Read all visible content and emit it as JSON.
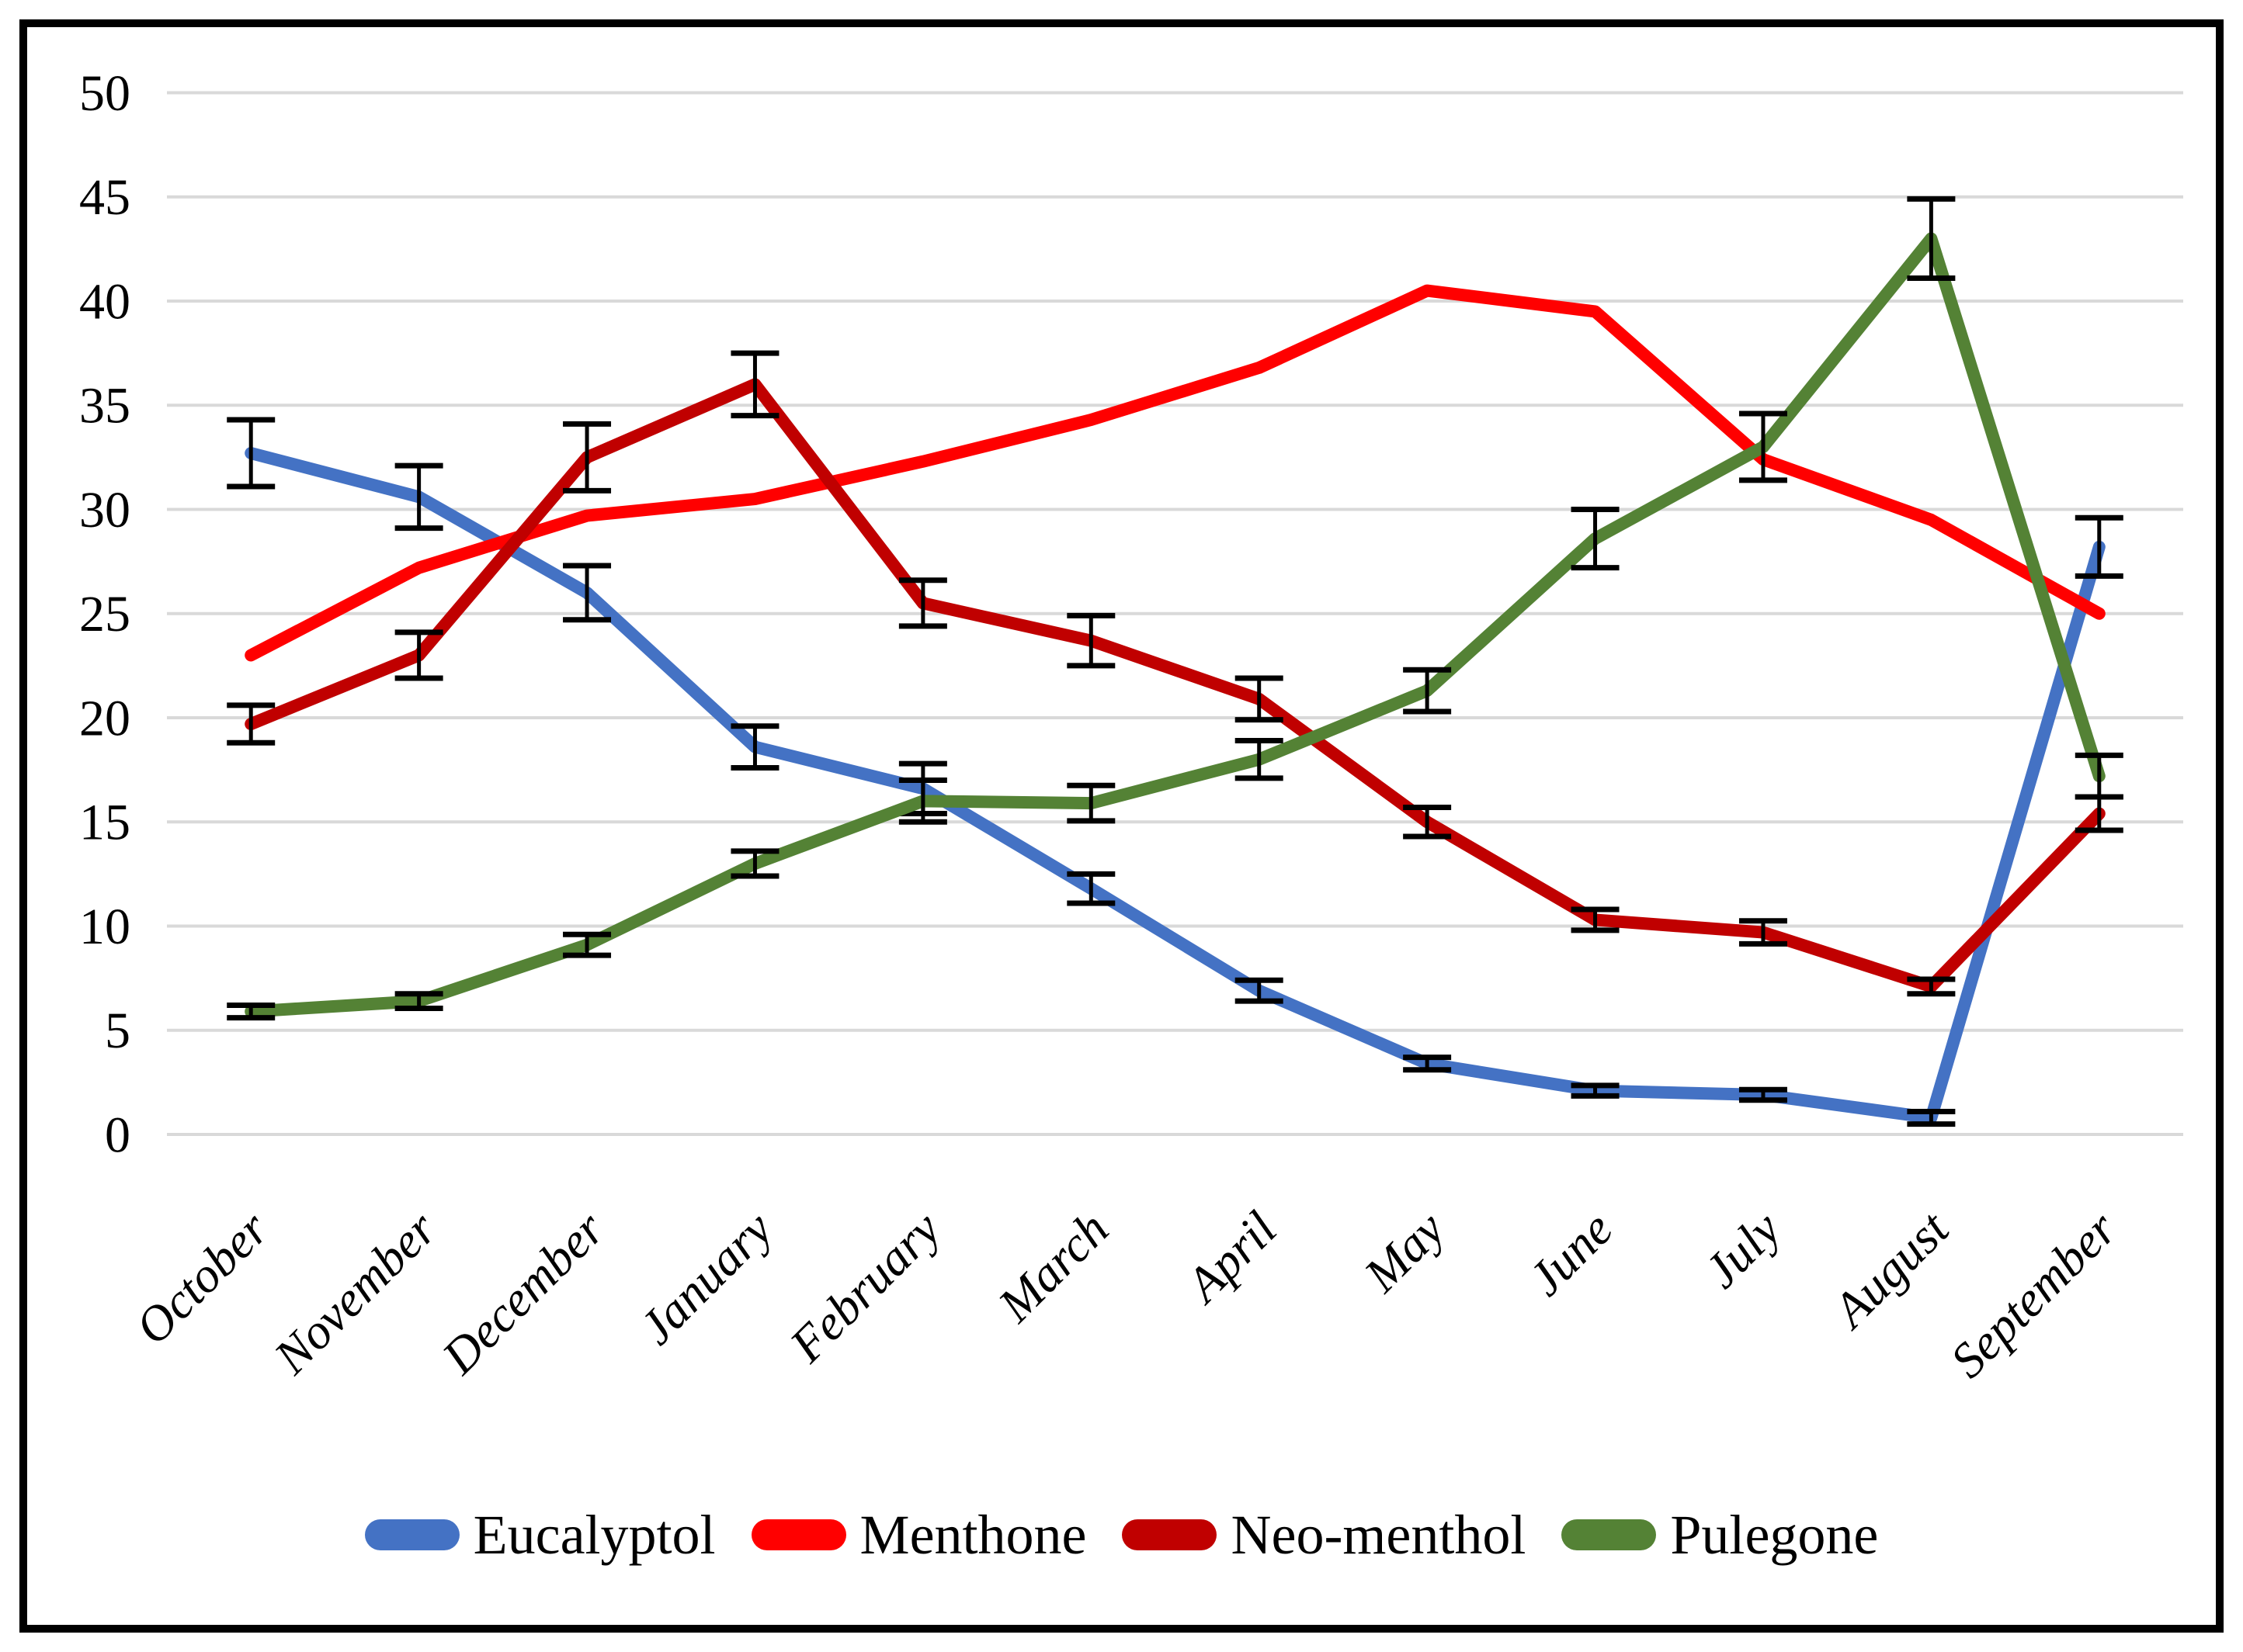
{
  "figure": {
    "background": "#ffffff",
    "border_color": "#000000",
    "gridline_color": "#d9d9d9",
    "error_bar_color": "#000000"
  },
  "chart_data": {
    "type": "line",
    "title": "",
    "xlabel": "",
    "ylabel": "",
    "legend_position": "bottom",
    "grid": "horizontal",
    "categories": [
      "October",
      "November",
      "December",
      "January",
      "February",
      "March",
      "April",
      "May",
      "June",
      "July",
      "August",
      "September"
    ],
    "y_axis": {
      "min": 0,
      "max": 50,
      "tick_step": 5,
      "tick_labels": [
        "0",
        "5",
        "10",
        "15",
        "20",
        "25",
        "30",
        "35",
        "40",
        "45",
        "50"
      ]
    },
    "series": [
      {
        "name": "Eucalyptol",
        "color": "#4472C4",
        "values": [
          32.7,
          30.6,
          26.0,
          18.6,
          16.6,
          11.8,
          6.9,
          3.4,
          2.1,
          1.9,
          0.8,
          28.2
        ],
        "errors": [
          1.6,
          1.5,
          1.3,
          1.0,
          1.2,
          0.7,
          0.5,
          0.3,
          0.25,
          0.25,
          0.3,
          1.4
        ]
      },
      {
        "name": "Menthone",
        "color": "#FF0000",
        "values": [
          23.0,
          27.2,
          29.7,
          30.5,
          32.3,
          34.3,
          36.8,
          40.5,
          39.5,
          32.4,
          29.5,
          25.0
        ],
        "errors": null
      },
      {
        "name": "Neo-menthol",
        "color": "#C00000",
        "values": [
          19.7,
          23.0,
          32.5,
          36.0,
          25.5,
          23.7,
          20.9,
          15.0,
          10.3,
          9.7,
          7.1,
          15.4
        ],
        "errors": [
          0.9,
          1.1,
          1.6,
          1.5,
          1.1,
          1.2,
          1.0,
          0.7,
          0.5,
          0.55,
          0.35,
          0.8
        ]
      },
      {
        "name": "Pulegone",
        "color": "#548235",
        "values": [
          5.9,
          6.4,
          9.1,
          13.0,
          16.0,
          15.9,
          18.0,
          21.3,
          28.6,
          33.0,
          43.0,
          17.2
        ],
        "errors": [
          0.3,
          0.35,
          0.5,
          0.6,
          1.0,
          0.85,
          0.9,
          1.0,
          1.4,
          1.6,
          1.9,
          1.0
        ]
      }
    ]
  }
}
